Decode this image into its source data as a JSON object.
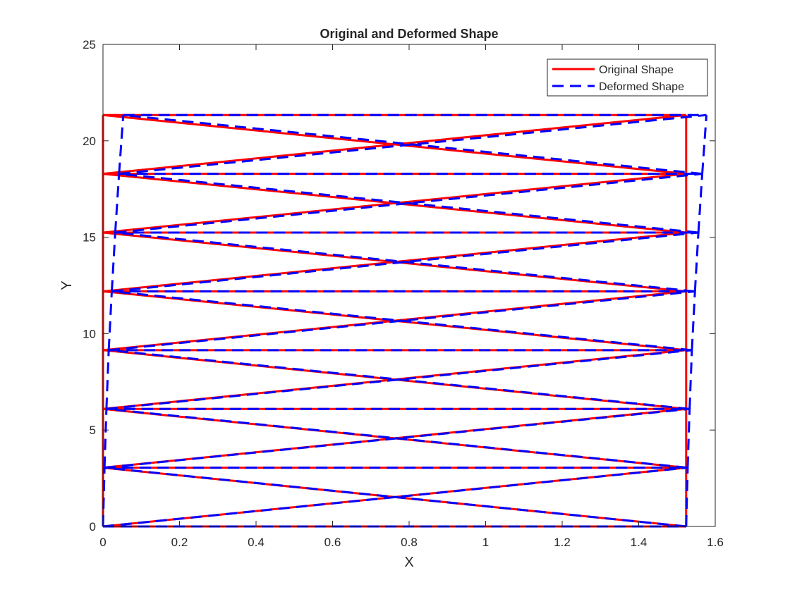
{
  "chart_data": {
    "type": "line",
    "title": "Original and Deformed Shape",
    "xlabel": "X",
    "ylabel": "Y",
    "xlim": [
      0,
      1.6
    ],
    "ylim": [
      0,
      25
    ],
    "x_ticks": [
      0,
      0.2,
      0.4,
      0.6,
      0.8,
      1,
      1.2,
      1.4,
      1.6
    ],
    "x_tick_labels": [
      "0",
      "0.2",
      "0.4",
      "0.6",
      "0.8",
      "1",
      "1.2",
      "1.4",
      "1.6"
    ],
    "y_ticks": [
      0,
      5,
      10,
      15,
      20,
      25
    ],
    "y_tick_labels": [
      "0",
      "5",
      "10",
      "15",
      "20",
      "25"
    ],
    "grid": false,
    "legend_position": "top-right",
    "series": [
      {
        "name": "Original Shape",
        "color": "#ff0000",
        "style": "solid",
        "nodes": [
          [
            0,
            0
          ],
          [
            1.524,
            0
          ],
          [
            0,
            3.048
          ],
          [
            1.524,
            3.048
          ],
          [
            0,
            6.096
          ],
          [
            1.524,
            6.096
          ],
          [
            0,
            9.144
          ],
          [
            1.524,
            9.144
          ],
          [
            0,
            12.192
          ],
          [
            1.524,
            12.192
          ],
          [
            0,
            15.24
          ],
          [
            1.524,
            15.24
          ],
          [
            0,
            18.288
          ],
          [
            1.524,
            18.288
          ],
          [
            0,
            21.336
          ],
          [
            1.524,
            21.336
          ]
        ]
      },
      {
        "name": "Deformed Shape",
        "color": "#0000ff",
        "style": "dashed",
        "nodes": [
          [
            0,
            0
          ],
          [
            1.524,
            0
          ],
          [
            0.004,
            3.048
          ],
          [
            1.528,
            3.048
          ],
          [
            0.009,
            6.096
          ],
          [
            1.533,
            6.096
          ],
          [
            0.015,
            9.144
          ],
          [
            1.539,
            9.144
          ],
          [
            0.023,
            12.192
          ],
          [
            1.547,
            12.192
          ],
          [
            0.032,
            15.24
          ],
          [
            1.556,
            15.24
          ],
          [
            0.042,
            18.288
          ],
          [
            1.566,
            18.288
          ],
          [
            0.053,
            21.336
          ],
          [
            1.577,
            21.336
          ]
        ]
      }
    ],
    "members": [
      [
        0,
        1
      ],
      [
        0,
        2
      ],
      [
        1,
        3
      ],
      [
        0,
        3
      ],
      [
        1,
        2
      ],
      [
        2,
        3
      ],
      [
        2,
        4
      ],
      [
        3,
        5
      ],
      [
        2,
        5
      ],
      [
        3,
        4
      ],
      [
        4,
        5
      ],
      [
        4,
        6
      ],
      [
        5,
        7
      ],
      [
        4,
        7
      ],
      [
        5,
        6
      ],
      [
        6,
        7
      ],
      [
        6,
        8
      ],
      [
        7,
        9
      ],
      [
        6,
        9
      ],
      [
        7,
        8
      ],
      [
        8,
        9
      ],
      [
        8,
        10
      ],
      [
        9,
        11
      ],
      [
        8,
        11
      ],
      [
        9,
        10
      ],
      [
        10,
        11
      ],
      [
        10,
        12
      ],
      [
        11,
        13
      ],
      [
        10,
        13
      ],
      [
        11,
        12
      ],
      [
        12,
        13
      ],
      [
        12,
        14
      ],
      [
        13,
        15
      ],
      [
        12,
        15
      ],
      [
        13,
        14
      ],
      [
        14,
        15
      ]
    ]
  }
}
